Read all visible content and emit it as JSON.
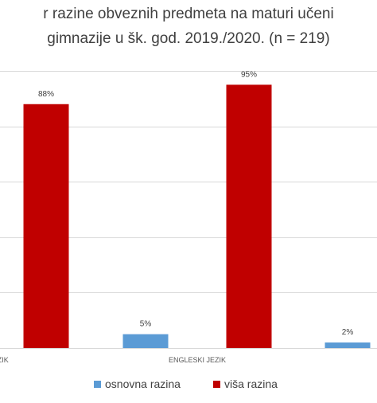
{
  "chart_data": {
    "type": "bar",
    "title_line1": "r razine obveznih predmeta na maturi učeni",
    "title_line2": "gimnazije u šk. god. 2019./2020. (n = 219)",
    "categories": [
      "KI JEZIK",
      "ENGLESKI JEZIK",
      ""
    ],
    "series": [
      {
        "name": "osnovna razina",
        "color": "#5B9BD5",
        "values": [
          null,
          5,
          2
        ],
        "labels": [
          "",
          "5%",
          "2%"
        ]
      },
      {
        "name": "viša razina",
        "color": "#C00000",
        "values": [
          88,
          95,
          null
        ],
        "labels": [
          "88%",
          "95%",
          ""
        ]
      }
    ],
    "ylim": [
      0,
      100
    ],
    "grid": true,
    "legend_position": "bottom"
  }
}
